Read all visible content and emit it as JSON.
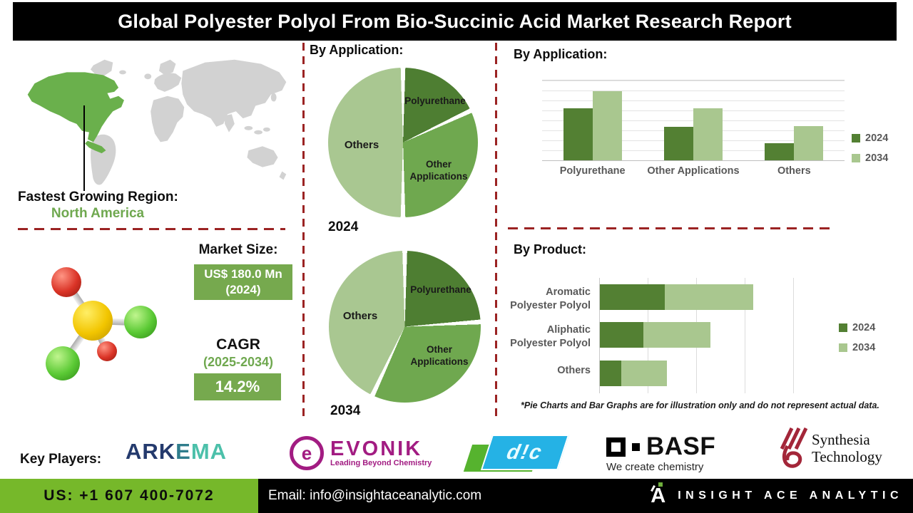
{
  "header": {
    "title": "Global Polyester Polyol From Bio-Succinic Acid Market Research Report"
  },
  "map": {
    "caption_label": "Fastest Growing Region:",
    "region": "North America"
  },
  "market": {
    "size_label": "Market Size:",
    "size_value": "US$ 180.0 Mn (2024)",
    "cagr_label": "CAGR",
    "cagr_period": "(2025-2034)",
    "cagr_value": "14.2%"
  },
  "chart_data": [
    {
      "id": "pie-application-2024",
      "type": "pie",
      "title": "By Application:",
      "period_label": "2024",
      "labels": [
        "Polyurethane",
        "Other Applications",
        "Others"
      ],
      "values": [
        18,
        32,
        50
      ],
      "colors": [
        "#4e7e32",
        "#6fa84f",
        "#a9c791"
      ],
      "note": "illustrative proportions"
    },
    {
      "id": "pie-application-2034",
      "type": "pie",
      "title": "By Application:",
      "period_label": "2034",
      "labels": [
        "Polyurethane",
        "Other Applications",
        "Others"
      ],
      "values": [
        24,
        33,
        43
      ],
      "colors": [
        "#4e7e32",
        "#6fa84f",
        "#a9c791"
      ],
      "note": "illustrative proportions"
    },
    {
      "id": "bar-application",
      "type": "bar",
      "title": "By Application:",
      "categories": [
        "Polyurethane",
        "Other Applications",
        "Others"
      ],
      "series": [
        {
          "name": "2024",
          "color": "#538033",
          "values": [
            65,
            42,
            21
          ]
        },
        {
          "name": "2034",
          "color": "#a9c78f",
          "values": [
            87,
            65,
            43
          ]
        }
      ],
      "ylim": [
        0,
        100
      ],
      "grid": true,
      "legend_position": "right",
      "note": "illustrative values read from bar heights"
    },
    {
      "id": "bar-product",
      "type": "stacked-hbar",
      "title": "By Product:",
      "categories": [
        "Aromatic Polyester Polyol",
        "Aliphatic Polyester Polyol",
        "Others"
      ],
      "series": [
        {
          "name": "2024",
          "color": "#538033",
          "values": [
            30,
            20,
            10
          ]
        },
        {
          "name": "2034",
          "color": "#a9c78f",
          "values": [
            41,
            31,
            21
          ]
        }
      ],
      "xlim": [
        0,
        90
      ],
      "grid": true,
      "legend_position": "right",
      "note": "illustrative values read from bar lengths"
    }
  ],
  "disclaimer": "*Pie Charts and Bar Graphs are for illustration only and do not represent actual data.",
  "key_players": {
    "label": "Key Players:",
    "arkema": {
      "name": "ARKEMA",
      "segments": [
        {
          "text": "ARK",
          "color": "#243a6d"
        },
        {
          "text": "E",
          "color": "#2f7d8c"
        },
        {
          "text": "MA",
          "color": "#4cc0aa"
        }
      ]
    },
    "evonik": {
      "icon": "e",
      "name": "EVONIK",
      "tagline": "Leading Beyond Chemistry"
    },
    "dic": {
      "text": "d!c"
    },
    "basf": {
      "name": "BASF",
      "tagline": "We create chemistry"
    },
    "synthesia": {
      "line1": "Synthesia",
      "line2": "Technology"
    }
  },
  "footer": {
    "phone": "US: +1 607 400-7072",
    "email": "Email: info@insightaceanalytic.com",
    "brand": "INSIGHT ACE ANALYTIC"
  },
  "colors": {
    "pie_dark_green": "#4e7e32",
    "pie_mid_green": "#6fa84f",
    "pie_light_green": "#a9c791",
    "box_green": "#76a94e",
    "footer_green": "#76b82a",
    "map_green": "#6ab04c",
    "map_gray": "#d2d2d2",
    "dashed_red": "#9b2323",
    "header_black": "#000000"
  }
}
